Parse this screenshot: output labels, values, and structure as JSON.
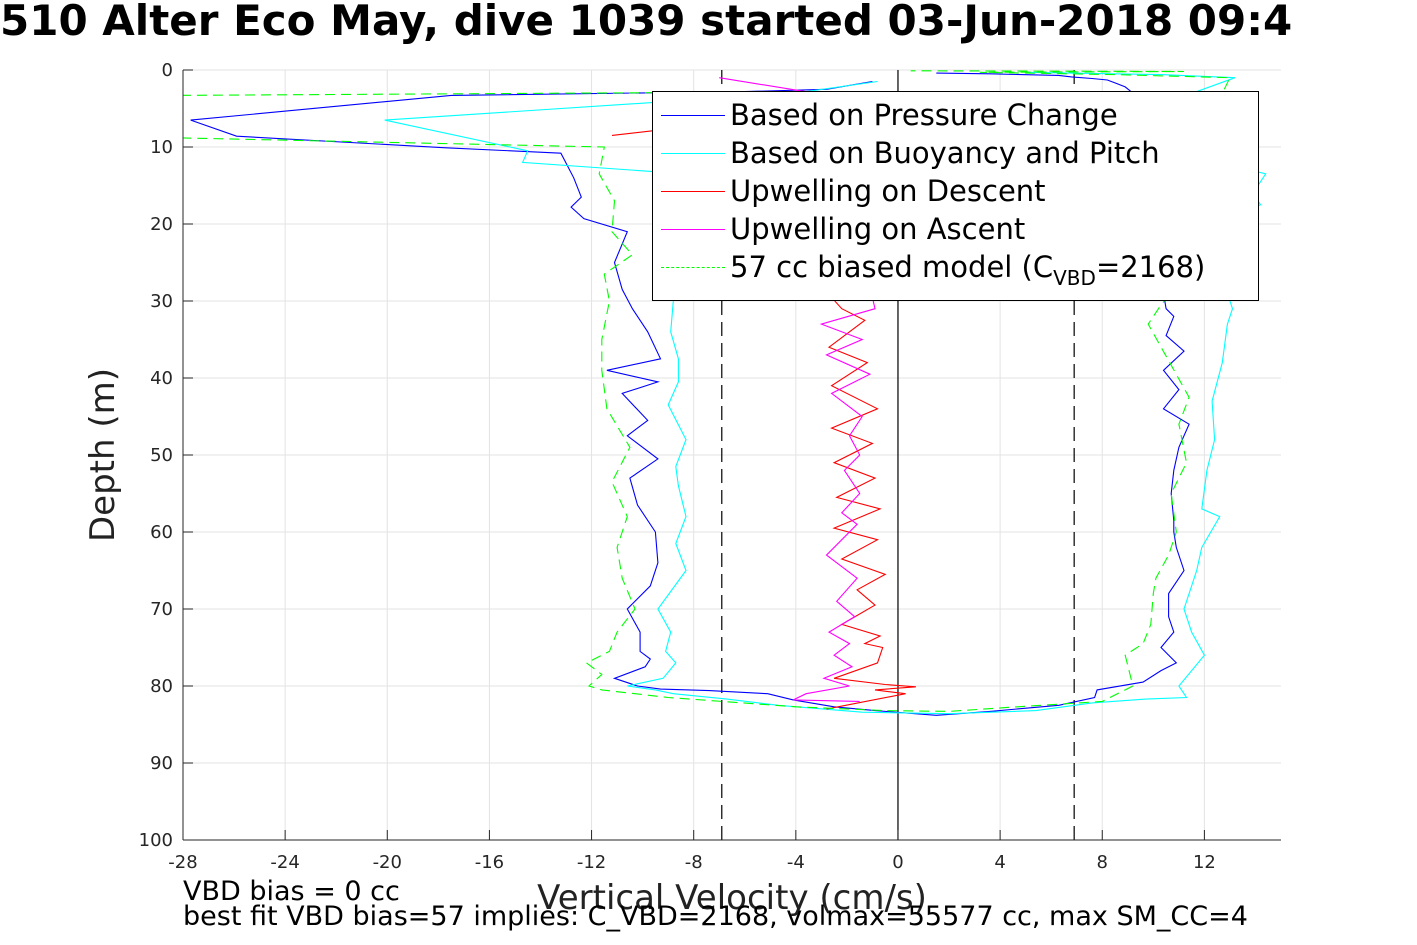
{
  "title": "510 Alter Eco May, dive 1039 started 03-Jun-2018 09:4",
  "footnotes": {
    "line1": "VBD bias = 0 cc",
    "line2": "best fit VBD bias=57 implies: C_VBD=2168, volmax=55577 cc, max SM_CC=4"
  },
  "legend": {
    "items": [
      {
        "label": "Based on Pressure Change",
        "color": "#0000ff",
        "dash": "solid"
      },
      {
        "label": "Based on Buoyancy and Pitch",
        "color": "#00ffff",
        "dash": "solid"
      },
      {
        "label": "Upwelling on Descent",
        "color": "#ff0000",
        "dash": "solid"
      },
      {
        "label": "Upwelling on Ascent",
        "color": "#ff00ff",
        "dash": "solid"
      },
      {
        "label_prefix": "57 cc biased model (C",
        "label_sub": "VBD",
        "label_suffix": "=2168)",
        "color": "#00ff00",
        "dash": "dashed"
      }
    ]
  },
  "chart_data": {
    "type": "line",
    "title": "510 Alter Eco May, dive 1039 started 03-Jun-2018 09:4",
    "xlabel": "Vertical Velocity (cm/s)",
    "ylabel": "Depth (m)",
    "xlim": [
      -28,
      15
    ],
    "ylim": [
      0,
      100
    ],
    "y_reversed": true,
    "xticks": [
      -28,
      -24,
      -20,
      -16,
      -12,
      -8,
      -4,
      0,
      4,
      8,
      12
    ],
    "yticks": [
      0,
      10,
      20,
      30,
      40,
      50,
      60,
      70,
      80,
      90,
      100
    ],
    "grid": true,
    "legend_position": "top-right",
    "reference_lines": [
      {
        "x": -6.9,
        "style": "dashed",
        "color": "#000000"
      },
      {
        "x": 0,
        "style": "solid",
        "color": "#000000"
      },
      {
        "x": 6.9,
        "style": "dashed",
        "color": "#000000"
      }
    ],
    "series": [
      {
        "name": "Based on Pressure Change",
        "color": "#0000ff",
        "dash": "solid",
        "x": [
          -1,
          -2.8,
          -6,
          -17.5,
          -27.7,
          -25.9,
          -17.7,
          -13.2,
          -12.7,
          -12.4,
          -12.8,
          -12.3,
          -10.6,
          -11.1,
          -10.8,
          -10.4,
          -9.8,
          -9.3,
          -11.4,
          -9.4,
          -10.8,
          -9.8,
          -10.6,
          -9.4,
          -10.5,
          -10.2,
          -9.5,
          -9.4,
          -9.7,
          -10.6,
          -10.1,
          -10.1,
          -9.7,
          -9.9,
          -11.1,
          -10.2,
          -9.3,
          -7.4,
          -5.1,
          -4.1,
          -2.5,
          -0.9,
          1.5,
          3.6,
          6.3,
          7.7,
          7.8,
          9.6,
          10.3,
          10.9,
          10.3,
          10.8,
          10.6,
          10.6,
          11.2,
          10.9,
          10.8,
          10.8,
          10.7,
          10.8,
          11.0,
          11.4,
          10.4,
          11.0,
          10.4,
          11.2,
          10.5,
          10.8,
          10.5,
          10.4,
          10.8,
          11.2,
          10.3,
          10.2,
          10.8,
          10.5,
          9.8,
          9.8,
          9.6,
          9.2,
          8.9,
          8.6,
          8.2,
          7.6,
          6.8,
          6.3,
          4.8,
          3.6,
          1.5
        ],
        "y": [
          1.5,
          2.5,
          2.8,
          3.3,
          6.5,
          8.6,
          10.1,
          10.8,
          14.0,
          16.5,
          17.8,
          19.3,
          21.0,
          25.0,
          28.5,
          31.0,
          34.0,
          37.5,
          39.0,
          40.5,
          42.0,
          45.5,
          47.5,
          50.5,
          53.0,
          56.5,
          60.0,
          64.0,
          67.0,
          70.0,
          73.0,
          75.5,
          76.5,
          77.5,
          79.0,
          80.0,
          80.4,
          80.6,
          81.0,
          81.8,
          82.7,
          83.2,
          83.8,
          83.3,
          82.5,
          81.5,
          80.5,
          79.5,
          78.0,
          77.0,
          75.0,
          73.0,
          71.0,
          68.0,
          65.0,
          62.0,
          60.0,
          58.5,
          55.0,
          52.0,
          49.0,
          46.0,
          44.0,
          41.5,
          39.0,
          36.5,
          34.5,
          32.0,
          31.0,
          29.0,
          25.5,
          22.0,
          19.0,
          16.5,
          14.0,
          12.0,
          8.5,
          6.0,
          4.5,
          3.0,
          2.2,
          1.8,
          1.3,
          1.1,
          0.9,
          0.7,
          0.6,
          0.5,
          0.4
        ]
      },
      {
        "name": "Based on Buoyancy and Pitch",
        "color": "#00ffff",
        "dash": "solid",
        "x": [
          -0.8,
          -4,
          -20.1,
          -14.5,
          -14.7,
          -8.3,
          -8.8,
          -8.9,
          -8.6,
          -8.6,
          -9.0,
          -8.3,
          -8.7,
          -8.6,
          -8.3,
          -8.7,
          -8.3,
          -9.4,
          -8.9,
          -9.1,
          -8.7,
          -9.2,
          -10.6,
          -9.5,
          -8.8,
          -6.7,
          -4.7,
          -1.4,
          2.0,
          5.4,
          7.6,
          9.7,
          11.3,
          11.0,
          12.0,
          11.5,
          11.2,
          11.7,
          11.9,
          12.6,
          11.9,
          12.1,
          12.4,
          12.3,
          12.7,
          12.9,
          13.1,
          12.8,
          12.3,
          13.1,
          12.6,
          14.2,
          13.9,
          14.2,
          14.4,
          13.8,
          12.2,
          9.8,
          10.8,
          10.7,
          13.2,
          10.3,
          5.0
        ],
        "y": [
          1.5,
          3.0,
          6.5,
          10.5,
          12.0,
          13.5,
          30.0,
          34.0,
          37.5,
          40.5,
          43.5,
          48.0,
          51.5,
          54.0,
          58.0,
          61.5,
          65.0,
          70.0,
          73.0,
          75.5,
          77.0,
          79.0,
          80.0,
          80.5,
          81.0,
          81.7,
          82.5,
          83.4,
          83.6,
          83.2,
          82.2,
          81.7,
          81.5,
          80.0,
          76.0,
          73.0,
          70.0,
          65.0,
          62.0,
          58.0,
          57.0,
          52.0,
          48.0,
          43.0,
          38.0,
          33.0,
          31.0,
          28.0,
          27.0,
          23.0,
          20.0,
          17.5,
          16.0,
          14.5,
          13.5,
          13.0,
          12.0,
          8.0,
          5.0,
          4.0,
          1.0,
          0.6,
          0.3
        ]
      },
      {
        "name": "Upwelling on Descent",
        "color": "#ff0000",
        "dash": "solid",
        "x": [
          -11.2,
          -8.6,
          -2.2,
          -1.3,
          -2.7,
          -1.2,
          -2.6,
          -0.8,
          -2.6,
          -1.0,
          -2.5,
          -0.9,
          -2.4,
          -0.7,
          -2.5,
          -0.8,
          -2.2,
          -0.5,
          -1.6,
          -0.9,
          -2.2,
          -0.7,
          -1.3,
          -0.6,
          -0.8,
          -2.5,
          -0.5,
          0.7,
          -0.9,
          0.3,
          -2.8
        ],
        "y": [
          8.5,
          7.5,
          31.0,
          32.5,
          36.0,
          38.0,
          41.0,
          44.0,
          46.5,
          48.5,
          51.0,
          53.0,
          55.5,
          57.0,
          59.5,
          61.0,
          63.5,
          65.5,
          67.5,
          69.5,
          72.0,
          73.5,
          74.5,
          75.0,
          77.0,
          79.0,
          79.8,
          80.1,
          80.5,
          81.0,
          83.0
        ]
      },
      {
        "name": "Upwelling on Ascent",
        "color": "#ff00ff",
        "dash": "solid",
        "x": [
          -1.5,
          -4.1,
          -3.6,
          -1.9,
          -2.9,
          -1.8,
          -2.5,
          -1.9,
          -2.7,
          -1.7,
          -2.4,
          -1.6,
          -2.8,
          -1.6,
          -2.2,
          -1.5,
          -2.1,
          -1.5,
          -1.9,
          -1.4,
          -2.6,
          -1.1,
          -2.8,
          -1.4,
          -3.0,
          -0.9,
          -2.2,
          -0.7,
          -1.4,
          -7.0
        ],
        "y": [
          82.0,
          81.8,
          81.0,
          80.0,
          79.0,
          77.5,
          76.0,
          74.5,
          73.0,
          71.0,
          69.0,
          66.0,
          63.0,
          59.0,
          57.5,
          55.0,
          52.0,
          50.0,
          47.5,
          45.0,
          42.0,
          39.5,
          37.0,
          35.0,
          33.0,
          31.0,
          12.0,
          8.0,
          4.0,
          1.0
        ]
      },
      {
        "name": "57 cc biased model (C_VBD=2168)",
        "color": "#00ff00",
        "dash": "dashed",
        "x": [
          -2,
          -28.3,
          -28.3,
          -11.5,
          -11.7,
          -11.1,
          -11.2,
          -10.4,
          -11.5,
          -11.3,
          -11.6,
          -11.6,
          -11.4,
          -10.5,
          -11.2,
          -10.6,
          -11.0,
          -10.8,
          -10.3,
          -11.0,
          -11.3,
          -12.2,
          -11.6,
          -12.1,
          -11.6,
          -9.0,
          -4.0,
          -0.5,
          2.0,
          4.2,
          8.0,
          9.2,
          8.9,
          9.6,
          9.9,
          10.0,
          10.1,
          10.6,
          10.9,
          10.7,
          11.3,
          11.0,
          11.4,
          9.8,
          10.3,
          11.2,
          12.5,
          11.1,
          13.0,
          8.5,
          3.2,
          11.2,
          0.5
        ],
        "y": [
          2.8,
          3.3,
          8.8,
          10.0,
          13.5,
          17.0,
          21.0,
          24.0,
          26.5,
          30.0,
          35.0,
          39.0,
          44.0,
          49.0,
          53.5,
          58.0,
          62.0,
          66.0,
          70.0,
          73.0,
          75.5,
          77.0,
          78.5,
          80.0,
          80.5,
          81.5,
          82.7,
          83.2,
          83.3,
          82.8,
          82.0,
          80.0,
          76.0,
          74.5,
          72.0,
          68.0,
          66.0,
          63.0,
          60.0,
          55.0,
          51.0,
          46.0,
          42.5,
          33.0,
          30.5,
          27.0,
          24.0,
          14.0,
          1.0,
          0.6,
          0.3,
          0.2,
          0.1
        ]
      }
    ]
  }
}
